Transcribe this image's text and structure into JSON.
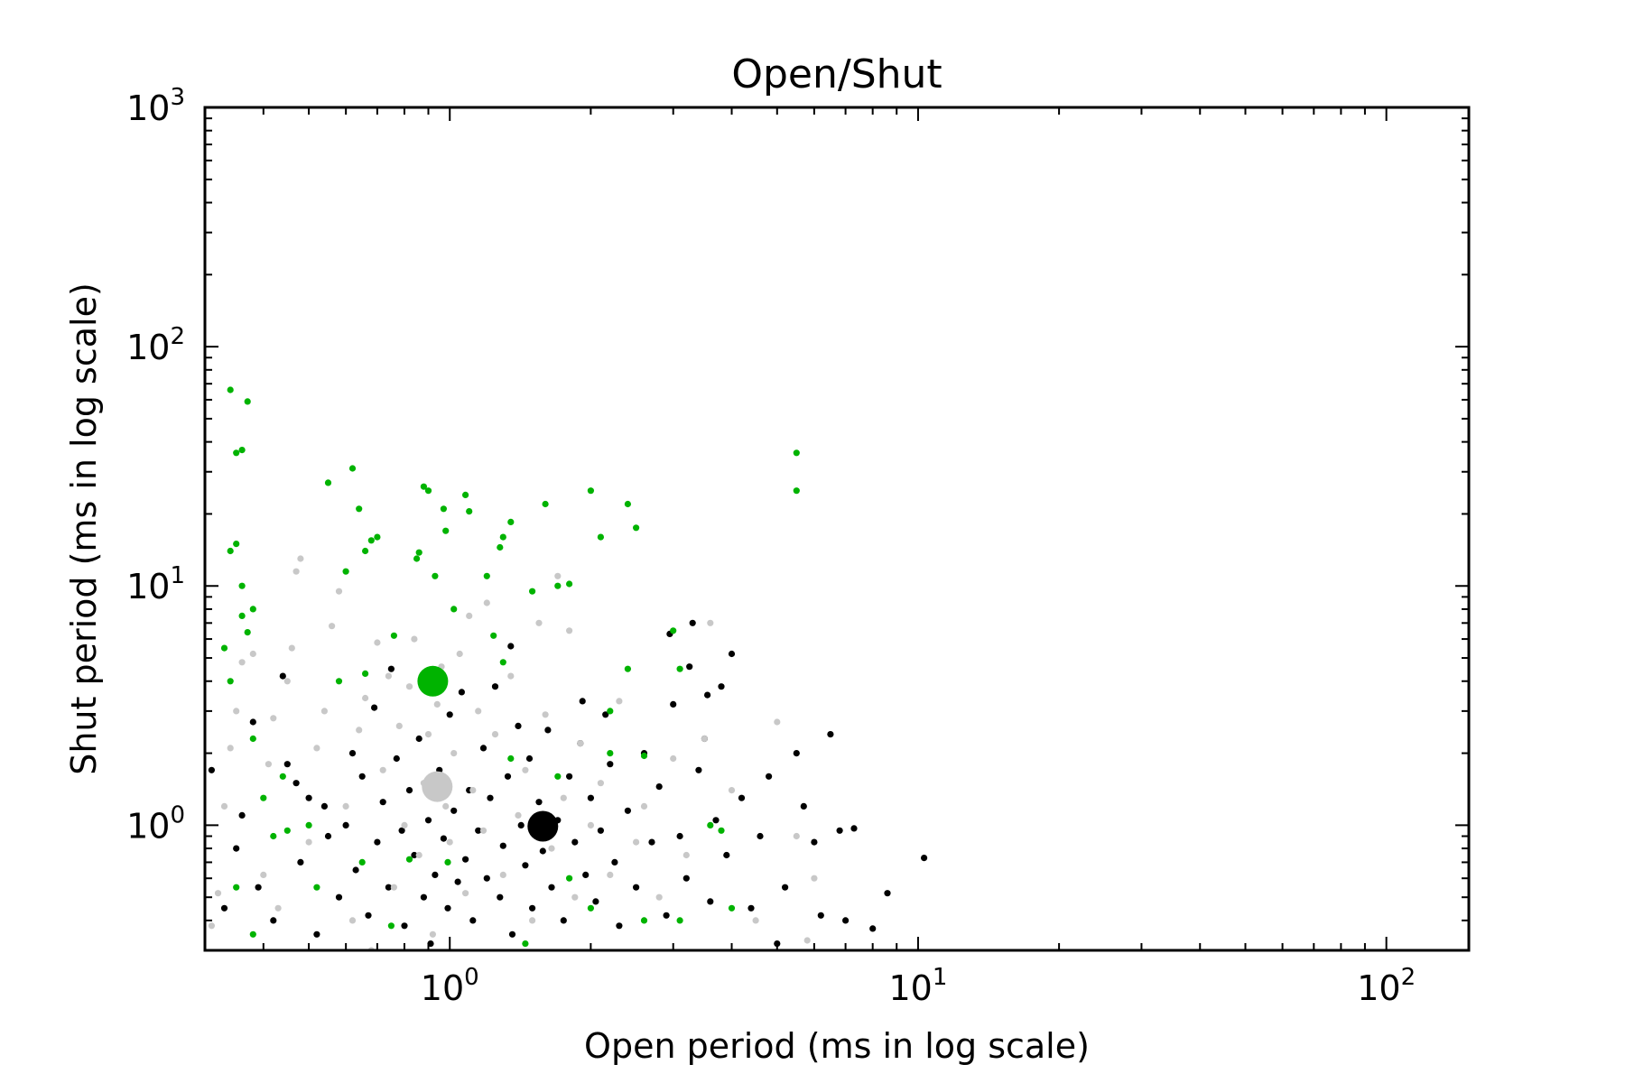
{
  "chart_data": {
    "type": "scatter",
    "title": "Open/Shut",
    "xlabel": "Open period (ms in log scale)",
    "ylabel": "Shut period (ms in log scale)",
    "xscale": "log",
    "yscale": "log",
    "xlim": [
      0.3,
      150
    ],
    "ylim": [
      0.3,
      1000
    ],
    "x_ticks": [
      {
        "base": "10",
        "exp": "0"
      },
      {
        "base": "10",
        "exp": "1"
      },
      {
        "base": "10",
        "exp": "2"
      }
    ],
    "y_ticks": [
      {
        "base": "10",
        "exp": "0"
      },
      {
        "base": "10",
        "exp": "1"
      },
      {
        "base": "10",
        "exp": "2"
      },
      {
        "base": "10",
        "exp": "3"
      }
    ],
    "grid": false,
    "legend": "none",
    "series": [
      {
        "color": "#000000",
        "marker_size": "small",
        "points": [
          [
            0.31,
            1.7
          ],
          [
            0.33,
            0.45
          ],
          [
            0.35,
            0.8
          ],
          [
            0.36,
            1.1
          ],
          [
            0.38,
            2.7
          ],
          [
            0.39,
            0.55
          ],
          [
            0.42,
            0.4
          ],
          [
            0.44,
            4.2
          ],
          [
            0.45,
            1.8
          ],
          [
            0.47,
            1.5
          ],
          [
            0.48,
            0.7
          ],
          [
            0.5,
            1.3
          ],
          [
            0.52,
            0.35
          ],
          [
            0.54,
            1.2
          ],
          [
            0.55,
            0.9
          ],
          [
            0.58,
            0.5
          ],
          [
            0.6,
            1.0
          ],
          [
            0.62,
            2.0
          ],
          [
            0.63,
            0.65
          ],
          [
            0.65,
            1.6
          ],
          [
            0.67,
            0.42
          ],
          [
            0.69,
            3.1
          ],
          [
            0.7,
            0.85
          ],
          [
            0.72,
            1.25
          ],
          [
            0.74,
            0.55
          ],
          [
            0.75,
            4.5
          ],
          [
            0.77,
            1.9
          ],
          [
            0.79,
            0.95
          ],
          [
            0.8,
            0.38
          ],
          [
            0.82,
            1.4
          ],
          [
            0.84,
            0.75
          ],
          [
            0.86,
            2.3
          ],
          [
            0.88,
            0.5
          ],
          [
            0.9,
            1.05
          ],
          [
            0.91,
            0.32
          ],
          [
            0.93,
            0.62
          ],
          [
            0.95,
            1.7
          ],
          [
            0.97,
            0.88
          ],
          [
            0.99,
            0.45
          ],
          [
            1.0,
            2.9
          ],
          [
            1.02,
            1.15
          ],
          [
            1.04,
            0.58
          ],
          [
            1.06,
            3.6
          ],
          [
            1.08,
            0.72
          ],
          [
            1.1,
            1.4
          ],
          [
            1.12,
            0.4
          ],
          [
            1.15,
            0.95
          ],
          [
            1.18,
            2.1
          ],
          [
            1.2,
            0.6
          ],
          [
            1.22,
            1.3
          ],
          [
            1.25,
            3.8
          ],
          [
            1.28,
            0.5
          ],
          [
            1.3,
            0.82
          ],
          [
            1.33,
            1.6
          ],
          [
            1.36,
            0.35
          ],
          [
            1.4,
            2.6
          ],
          [
            1.42,
            1.0
          ],
          [
            1.45,
            0.68
          ],
          [
            1.48,
            1.9
          ],
          [
            1.5,
            0.45
          ],
          [
            1.55,
            1.25
          ],
          [
            1.58,
            0.78
          ],
          [
            1.62,
            2.5
          ],
          [
            1.65,
            0.55
          ],
          [
            1.7,
            1.05
          ],
          [
            1.75,
            0.4
          ],
          [
            1.8,
            1.6
          ],
          [
            1.85,
            0.85
          ],
          [
            1.9,
            2.2
          ],
          [
            1.95,
            0.62
          ],
          [
            2.0,
            1.3
          ],
          [
            2.05,
            0.48
          ],
          [
            2.1,
            0.95
          ],
          [
            2.2,
            1.8
          ],
          [
            2.25,
            0.7
          ],
          [
            2.3,
            0.38
          ],
          [
            2.4,
            1.15
          ],
          [
            2.5,
            0.55
          ],
          [
            2.6,
            2.0
          ],
          [
            2.7,
            0.85
          ],
          [
            2.8,
            1.45
          ],
          [
            2.9,
            0.42
          ],
          [
            3.0,
            3.2
          ],
          [
            3.1,
            0.9
          ],
          [
            3.2,
            0.6
          ],
          [
            3.3,
            7.0
          ],
          [
            3.4,
            1.7
          ],
          [
            3.5,
            2.3
          ],
          [
            3.6,
            0.48
          ],
          [
            3.7,
            1.05
          ],
          [
            3.8,
            3.8
          ],
          [
            3.9,
            0.75
          ],
          [
            4.0,
            5.2
          ],
          [
            4.2,
            1.3
          ],
          [
            4.4,
            0.45
          ],
          [
            4.6,
            0.9
          ],
          [
            4.8,
            1.6
          ],
          [
            5.0,
            0.32
          ],
          [
            5.2,
            0.55
          ],
          [
            5.5,
            2.0
          ],
          [
            5.7,
            1.2
          ],
          [
            6.0,
            0.85
          ],
          [
            6.2,
            0.42
          ],
          [
            6.5,
            2.4
          ],
          [
            6.8,
            0.95
          ],
          [
            7.0,
            0.4
          ],
          [
            7.3,
            0.97
          ],
          [
            8.0,
            0.37
          ],
          [
            8.6,
            0.52
          ],
          [
            10.3,
            0.73
          ],
          [
            1.35,
            5.6
          ],
          [
            2.95,
            6.3
          ],
          [
            3.55,
            3.5
          ],
          [
            3.25,
            4.6
          ],
          [
            2.15,
            2.9
          ],
          [
            1.92,
            3.3
          ]
        ]
      },
      {
        "color": "#00b300",
        "marker_size": "small",
        "points": [
          [
            0.34,
            66
          ],
          [
            0.35,
            36
          ],
          [
            0.36,
            37
          ],
          [
            0.37,
            59
          ],
          [
            0.34,
            14
          ],
          [
            0.35,
            15
          ],
          [
            0.36,
            10
          ],
          [
            0.33,
            5.5
          ],
          [
            0.34,
            4.0
          ],
          [
            0.36,
            7.5
          ],
          [
            0.37,
            6.4
          ],
          [
            0.38,
            8
          ],
          [
            0.38,
            2.3
          ],
          [
            0.4,
            1.3
          ],
          [
            0.42,
            0.9
          ],
          [
            0.44,
            1.6
          ],
          [
            0.35,
            0.55
          ],
          [
            0.38,
            0.35
          ],
          [
            0.55,
            27
          ],
          [
            0.62,
            31
          ],
          [
            0.64,
            21
          ],
          [
            0.66,
            14
          ],
          [
            0.68,
            15.5
          ],
          [
            0.7,
            16
          ],
          [
            0.6,
            11.5
          ],
          [
            0.58,
            4
          ],
          [
            0.66,
            4.3
          ],
          [
            0.76,
            6.2
          ],
          [
            0.88,
            26
          ],
          [
            0.9,
            25
          ],
          [
            0.86,
            13.8
          ],
          [
            0.85,
            13
          ],
          [
            0.97,
            21
          ],
          [
            0.98,
            17
          ],
          [
            0.93,
            11
          ],
          [
            1.02,
            8
          ],
          [
            1.08,
            24
          ],
          [
            1.1,
            20.5
          ],
          [
            1.2,
            11
          ],
          [
            1.28,
            14.5
          ],
          [
            1.3,
            16
          ],
          [
            1.35,
            18.5
          ],
          [
            1.24,
            6.2
          ],
          [
            1.3,
            4.8
          ],
          [
            1.5,
            9.5
          ],
          [
            1.6,
            22
          ],
          [
            1.7,
            10
          ],
          [
            1.8,
            10.2
          ],
          [
            2.0,
            25
          ],
          [
            2.1,
            16
          ],
          [
            2.4,
            22
          ],
          [
            2.5,
            17.5
          ],
          [
            2.4,
            4.5
          ],
          [
            2.2,
            3
          ],
          [
            3.0,
            6.5
          ],
          [
            3.1,
            4.5
          ],
          [
            5.5,
            36
          ],
          [
            5.5,
            25
          ],
          [
            1.35,
            1.9
          ],
          [
            1.7,
            1.6
          ],
          [
            2.2,
            2.0
          ],
          [
            2.6,
            1.95
          ],
          [
            0.52,
            0.55
          ],
          [
            0.65,
            0.7
          ],
          [
            0.75,
            0.38
          ],
          [
            0.82,
            0.72
          ],
          [
            0.99,
            0.7
          ],
          [
            1.45,
            0.32
          ],
          [
            1.8,
            0.6
          ],
          [
            2.0,
            0.45
          ],
          [
            2.6,
            0.4
          ],
          [
            3.1,
            0.4
          ],
          [
            3.8,
            0.95
          ],
          [
            4.0,
            0.45
          ],
          [
            0.5,
            1.0
          ],
          [
            0.45,
            0.95
          ],
          [
            3.6,
            1.0
          ]
        ]
      },
      {
        "color": "#c8c8c8",
        "marker_size": "small",
        "points": [
          [
            0.31,
            0.38
          ],
          [
            0.32,
            0.52
          ],
          [
            0.33,
            1.2
          ],
          [
            0.34,
            2.1
          ],
          [
            0.35,
            3.0
          ],
          [
            0.36,
            4.8
          ],
          [
            0.38,
            5.2
          ],
          [
            0.4,
            0.62
          ],
          [
            0.41,
            1.8
          ],
          [
            0.42,
            2.8
          ],
          [
            0.43,
            0.45
          ],
          [
            0.45,
            4.0
          ],
          [
            0.46,
            5.5
          ],
          [
            0.47,
            11.5
          ],
          [
            0.48,
            13
          ],
          [
            0.5,
            0.85
          ],
          [
            0.52,
            2.1
          ],
          [
            0.54,
            3.0
          ],
          [
            0.56,
            6.8
          ],
          [
            0.58,
            9.5
          ],
          [
            0.6,
            1.2
          ],
          [
            0.62,
            0.4
          ],
          [
            0.64,
            2.5
          ],
          [
            0.66,
            3.4
          ],
          [
            0.68,
            0.3
          ],
          [
            0.7,
            5.8
          ],
          [
            0.72,
            1.7
          ],
          [
            0.74,
            4.2
          ],
          [
            0.76,
            0.55
          ],
          [
            0.78,
            2.6
          ],
          [
            0.8,
            1.0
          ],
          [
            0.82,
            3.8
          ],
          [
            0.84,
            6.0
          ],
          [
            0.86,
            0.75
          ],
          [
            0.88,
            1.5
          ],
          [
            0.9,
            2.4
          ],
          [
            0.92,
            0.35
          ],
          [
            0.94,
            3.2
          ],
          [
            0.96,
            4.6
          ],
          [
            0.98,
            1.2
          ],
          [
            1.0,
            0.85
          ],
          [
            1.02,
            2.0
          ],
          [
            1.05,
            5.2
          ],
          [
            1.08,
            0.52
          ],
          [
            1.1,
            7.5
          ],
          [
            1.12,
            1.4
          ],
          [
            1.15,
            3.0
          ],
          [
            1.18,
            0.95
          ],
          [
            1.2,
            8.5
          ],
          [
            1.25,
            2.4
          ],
          [
            1.3,
            0.62
          ],
          [
            1.35,
            4.2
          ],
          [
            1.4,
            1.1
          ],
          [
            1.45,
            1.7
          ],
          [
            1.5,
            0.4
          ],
          [
            1.55,
            7.0
          ],
          [
            1.6,
            2.9
          ],
          [
            1.65,
            0.8
          ],
          [
            1.7,
            11
          ],
          [
            1.75,
            1.3
          ],
          [
            1.8,
            6.5
          ],
          [
            1.85,
            0.5
          ],
          [
            1.9,
            2.2
          ],
          [
            2.0,
            1.0
          ],
          [
            2.1,
            1.5
          ],
          [
            2.2,
            0.62
          ],
          [
            2.3,
            3.3
          ],
          [
            2.5,
            0.85
          ],
          [
            2.6,
            1.2
          ],
          [
            2.8,
            0.5
          ],
          [
            3.0,
            1.9
          ],
          [
            3.2,
            0.75
          ],
          [
            3.5,
            2.3
          ],
          [
            3.6,
            7.0
          ],
          [
            4.0,
            1.4
          ],
          [
            4.5,
            0.4
          ],
          [
            5.0,
            2.7
          ],
          [
            5.5,
            0.9
          ],
          [
            5.8,
            0.33
          ],
          [
            6.0,
            0.6
          ]
        ]
      },
      {
        "color": "#00b300",
        "marker_size": "large",
        "points": [
          [
            0.92,
            4.0
          ]
        ]
      },
      {
        "color": "#c8c8c8",
        "marker_size": "large",
        "points": [
          [
            0.94,
            1.45
          ]
        ]
      },
      {
        "color": "#000000",
        "marker_size": "large",
        "points": [
          [
            1.58,
            0.99
          ]
        ]
      }
    ]
  }
}
